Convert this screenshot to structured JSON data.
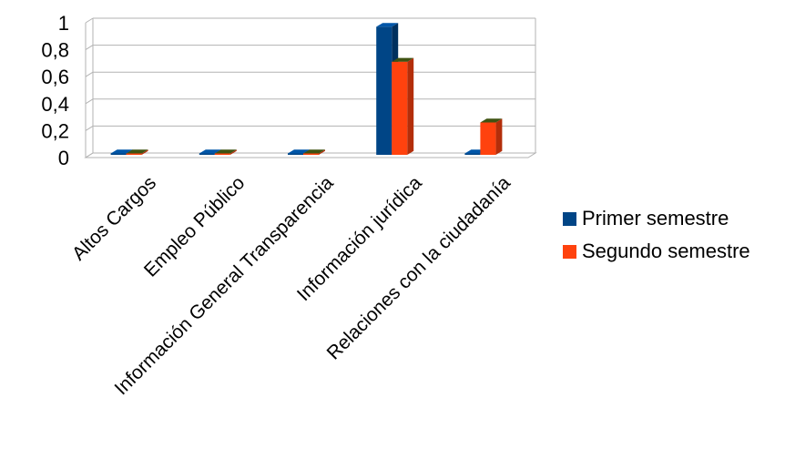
{
  "chart_data": {
    "type": "bar",
    "title": "",
    "xlabel": "",
    "ylabel": "",
    "ylim": [
      0,
      1
    ],
    "y_ticks": [
      "0",
      "0,2",
      "0,4",
      "0,6",
      "0,8",
      "1"
    ],
    "grid": true,
    "legend_position": "right",
    "categories": [
      "Altos Cargos",
      "Empleo Público",
      "Información General Transparencia",
      "Información jurídica",
      "Relaciones con la ciudadanía"
    ],
    "series": [
      {
        "name": "Primer semestre",
        "color": "#004586",
        "values": [
          0,
          0,
          0,
          0.95,
          0
        ]
      },
      {
        "name": "Segundo semestre",
        "color": "#ff420e",
        "values": [
          0,
          0.01,
          0,
          0.69,
          0.24
        ]
      }
    ]
  }
}
